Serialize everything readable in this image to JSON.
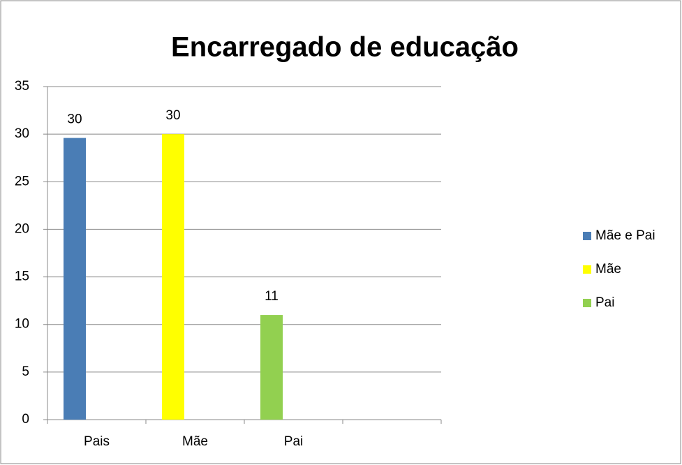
{
  "chart_data": {
    "type": "bar",
    "title": "Encarregado de educação",
    "categories": [
      "Pais",
      "Mãe",
      "Pai",
      null
    ],
    "series": [
      {
        "name": "Mãe e Pai",
        "color": "#4a7db5",
        "values": [
          29.6,
          null,
          null,
          null
        ],
        "value_labels": [
          "30",
          null,
          null,
          null
        ]
      },
      {
        "name": "Mãe",
        "color": "#ffff00",
        "values": [
          null,
          30,
          null,
          null
        ]
      },
      {
        "name": "Pai",
        "color": "#92d050",
        "values": [
          null,
          null,
          11,
          null
        ]
      }
    ],
    "ylim": [
      0,
      35
    ],
    "yticks": [
      0,
      5,
      10,
      15,
      20,
      25,
      30,
      35
    ],
    "grid": true,
    "legend": "right"
  }
}
